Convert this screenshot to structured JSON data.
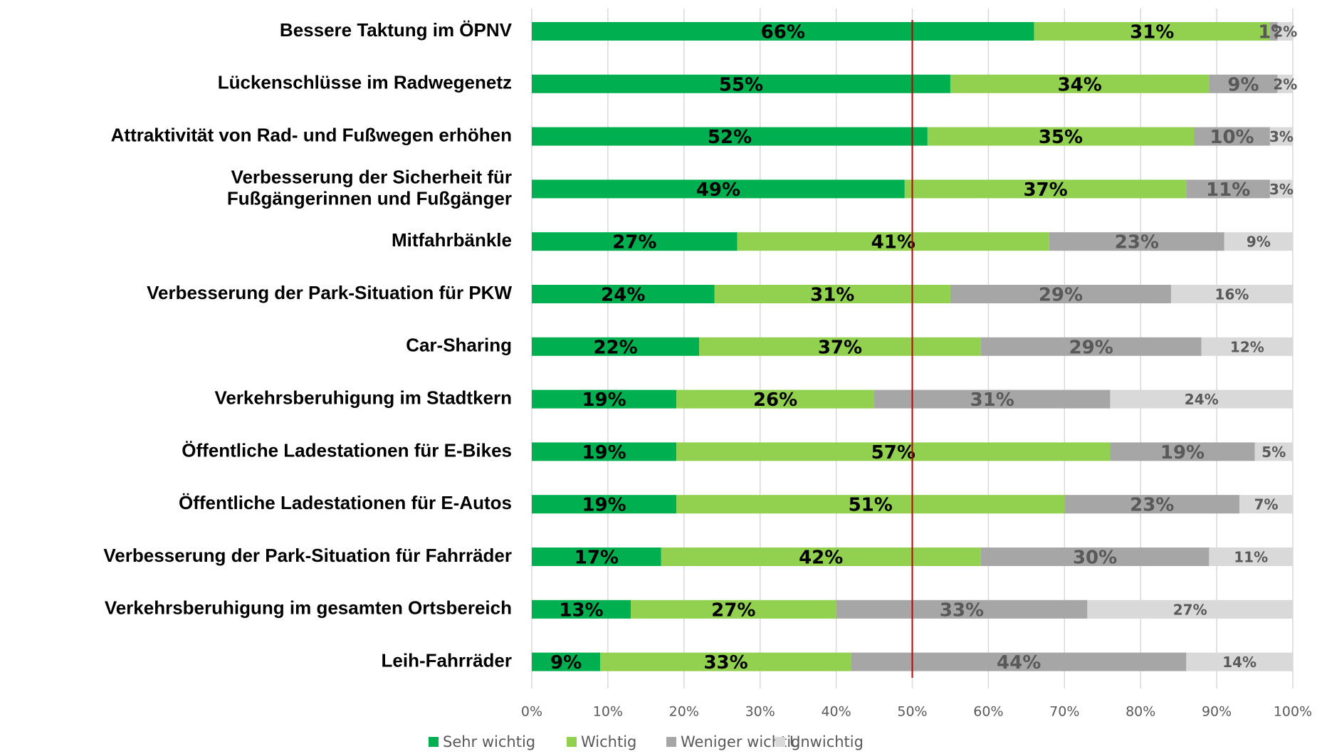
{
  "chart_data": {
    "type": "stacked_barh",
    "categories": [
      "Bessere Taktung im ÖPNV",
      "Lückenschlüsse im Radwegenetz",
      "Attraktivität von Rad- und Fußwegen erhöhen",
      "Verbesserung der Sicherheit für\nFußgängerinnen und Fußgänger",
      "Mitfahrbänkle",
      "Verbesserung der Park-Situation für PKW",
      "Car-Sharing",
      "Verkehrsberuhigung im Stadtkern",
      "Öffentliche Ladestationen für E-Bikes",
      "Öffentliche Ladestationen für E-Autos",
      "Verbesserung der Park-Situation für Fahrräder",
      "Verkehrsberuhigung im gesamten Ortsbereich",
      "Leih-Fahrräder"
    ],
    "series": [
      {
        "name": "Sehr wichtig",
        "color": "#00b050",
        "label_color": "#000000",
        "values": [
          66,
          55,
          52,
          49,
          27,
          24,
          22,
          19,
          19,
          19,
          17,
          13,
          9
        ],
        "value_labels": [
          "66%",
          "55%",
          "52%",
          "49%",
          "27%",
          "24%",
          "22%",
          "19%",
          "19%",
          "19%",
          "17%",
          "13%",
          "9%"
        ]
      },
      {
        "name": "Wichtig",
        "color": "#92d050",
        "label_color": "#000000",
        "values": [
          31,
          34,
          35,
          37,
          41,
          31,
          37,
          26,
          57,
          51,
          42,
          27,
          33
        ],
        "value_labels": [
          "31%",
          "34%",
          "35%",
          "37%",
          "41%",
          "31%",
          "37%",
          "26%",
          "57%",
          "51%",
          "42%",
          "27%",
          "33%"
        ]
      },
      {
        "name": "Weniger wichtig",
        "color": "#a6a6a6",
        "label_color": "#595959",
        "values": [
          1,
          9,
          10,
          11,
          23,
          29,
          29,
          31,
          19,
          23,
          30,
          33,
          44
        ],
        "value_labels": [
          "1%",
          "9%",
          "10%",
          "11%",
          "23%",
          "29%",
          "29%",
          "31%",
          "19%",
          "23%",
          "30%",
          "33%",
          "44%"
        ]
      },
      {
        "name": "Unwichtig",
        "color": "#d9d9d9",
        "label_color": "#595959",
        "values": [
          2,
          2,
          3,
          3,
          9,
          16,
          12,
          24,
          5,
          7,
          11,
          27,
          14
        ],
        "value_labels": [
          "2%",
          "2%",
          "3%",
          "3%",
          "9%",
          "16%",
          "12%",
          "24%",
          "5%",
          "7%",
          "11%",
          "27%",
          "14%"
        ]
      }
    ],
    "xlim": [
      0,
      100
    ],
    "xticks": [
      {
        "value": 0,
        "label": "0%"
      },
      {
        "value": 10,
        "label": "10%"
      },
      {
        "value": 20,
        "label": "20%"
      },
      {
        "value": 30,
        "label": "30%"
      },
      {
        "value": 40,
        "label": "40%"
      },
      {
        "value": 50,
        "label": "50%"
      },
      {
        "value": 60,
        "label": "60%"
      },
      {
        "value": 70,
        "label": "70%"
      },
      {
        "value": 80,
        "label": "80%"
      },
      {
        "value": 90,
        "label": "90%"
      },
      {
        "value": 100,
        "label": "100%"
      }
    ],
    "grid": true,
    "reference_line": {
      "value": 50,
      "color": "#c00000"
    },
    "legend": "bottom"
  }
}
